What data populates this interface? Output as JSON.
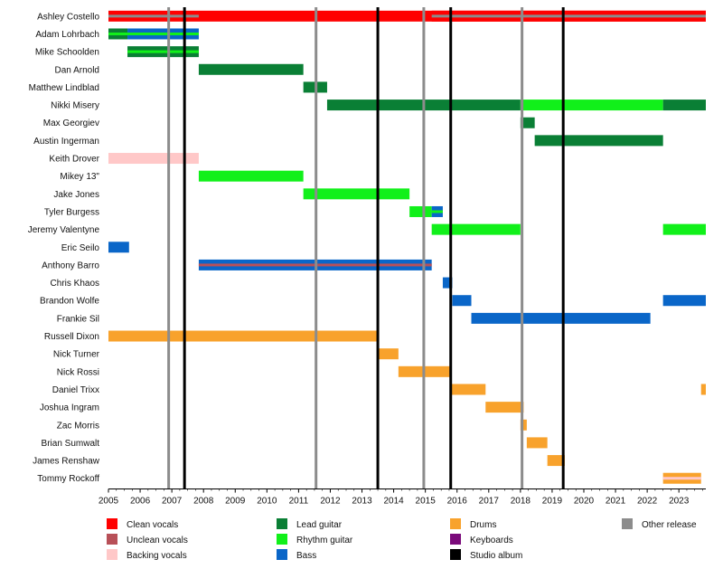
{
  "chart_data": {
    "type": "timeline",
    "xlim": [
      2005,
      2023.85
    ],
    "x_ticks": [
      "2005",
      "2006",
      "2007",
      "2008",
      "2009",
      "2010",
      "2011",
      "2012",
      "2013",
      "2014",
      "2015",
      "2016",
      "2017",
      "2018",
      "2019",
      "2020",
      "2021",
      "2022",
      "2023"
    ],
    "colors": {
      "clean_vocals": "#ff0000",
      "unclean_vocals": "#b85058",
      "backing_vocals": "#ffc8c8",
      "lead_guitar": "#0a7f35",
      "rhythm_guitar": "#11f01a",
      "bass": "#0a66c8",
      "drums": "#f8a22c",
      "keyboards": "#7a0a7a",
      "studio_album": "#000000",
      "other_release": "#8c8c8c"
    },
    "members": [
      {
        "name": "Ashley Costello",
        "periods": [
          {
            "start": 2005,
            "end": 2023.85,
            "role": "clean_vocals",
            "accent": "other_release",
            "accent_range": [
              2005,
              2007.85
            ]
          },
          {
            "start": 2015.2,
            "end": 2023.85,
            "role": "clean_vocals",
            "accent": "other_release"
          }
        ]
      },
      {
        "name": "Adam Lohrbach",
        "periods": [
          {
            "start": 2005,
            "end": 2005.6,
            "role": "lead_guitar",
            "accent": "rhythm_guitar"
          },
          {
            "start": 2005.6,
            "end": 2007.85,
            "role": "bass",
            "accent": "rhythm_guitar"
          }
        ]
      },
      {
        "name": "Mike Schoolden",
        "periods": [
          {
            "start": 2005.6,
            "end": 2007.85,
            "role": "lead_guitar",
            "accent": "rhythm_guitar"
          }
        ]
      },
      {
        "name": "Dan Arnold",
        "periods": [
          {
            "start": 2007.85,
            "end": 2011.15,
            "role": "lead_guitar"
          }
        ]
      },
      {
        "name": "Matthew Lindblad",
        "periods": [
          {
            "start": 2011.15,
            "end": 2011.9,
            "role": "lead_guitar"
          }
        ]
      },
      {
        "name": "Nikki Misery",
        "periods": [
          {
            "start": 2011.9,
            "end": 2018.0,
            "role": "lead_guitar"
          },
          {
            "start": 2018.0,
            "end": 2022.5,
            "role": "rhythm_guitar"
          },
          {
            "start": 2022.5,
            "end": 2023.85,
            "role": "lead_guitar"
          }
        ]
      },
      {
        "name": "Max Georgiev",
        "periods": [
          {
            "start": 2018.0,
            "end": 2018.45,
            "role": "lead_guitar"
          }
        ]
      },
      {
        "name": "Austin Ingerman",
        "periods": [
          {
            "start": 2018.45,
            "end": 2022.5,
            "role": "lead_guitar"
          }
        ]
      },
      {
        "name": "Keith Drover",
        "periods": [
          {
            "start": 2005,
            "end": 2007.85,
            "role": "backing_vocals"
          }
        ]
      },
      {
        "name": "Mikey 13\"",
        "periods": [
          {
            "start": 2007.85,
            "end": 2011.15,
            "role": "rhythm_guitar"
          }
        ]
      },
      {
        "name": "Jake Jones",
        "periods": [
          {
            "start": 2011.15,
            "end": 2014.5,
            "role": "rhythm_guitar"
          }
        ]
      },
      {
        "name": "Tyler Burgess",
        "periods": [
          {
            "start": 2014.5,
            "end": 2015.2,
            "role": "rhythm_guitar"
          },
          {
            "start": 2015.2,
            "end": 2015.55,
            "role": "bass",
            "accent": "rhythm_guitar"
          }
        ]
      },
      {
        "name": "Jeremy Valentyne",
        "periods": [
          {
            "start": 2015.2,
            "end": 2018.0,
            "role": "rhythm_guitar"
          },
          {
            "start": 2022.5,
            "end": 2023.85,
            "role": "rhythm_guitar"
          }
        ]
      },
      {
        "name": "Eric Seilo",
        "periods": [
          {
            "start": 2005,
            "end": 2005.65,
            "role": "bass"
          }
        ]
      },
      {
        "name": "Anthony Barro",
        "periods": [
          {
            "start": 2007.85,
            "end": 2015.2,
            "role": "bass",
            "accent": "unclean_vocals"
          }
        ]
      },
      {
        "name": "Chris Khaos",
        "periods": [
          {
            "start": 2015.55,
            "end": 2015.85,
            "role": "bass"
          }
        ]
      },
      {
        "name": "Brandon Wolfe",
        "periods": [
          {
            "start": 2015.85,
            "end": 2016.45,
            "role": "bass"
          },
          {
            "start": 2022.5,
            "end": 2023.85,
            "role": "bass"
          }
        ]
      },
      {
        "name": "Frankie Sil",
        "periods": [
          {
            "start": 2016.45,
            "end": 2022.1,
            "role": "bass"
          }
        ]
      },
      {
        "name": "Russell Dixon",
        "periods": [
          {
            "start": 2005,
            "end": 2013.5,
            "role": "drums"
          }
        ]
      },
      {
        "name": "Nick Turner",
        "periods": [
          {
            "start": 2013.5,
            "end": 2014.15,
            "role": "drums"
          }
        ]
      },
      {
        "name": "Nick Rossi",
        "periods": [
          {
            "start": 2014.15,
            "end": 2015.8,
            "role": "drums"
          }
        ]
      },
      {
        "name": "Daniel Trixx",
        "periods": [
          {
            "start": 2015.8,
            "end": 2016.9,
            "role": "drums"
          },
          {
            "start": 2023.7,
            "end": 2023.85,
            "role": "drums"
          }
        ]
      },
      {
        "name": "Joshua Ingram",
        "periods": [
          {
            "start": 2016.9,
            "end": 2018.1,
            "role": "drums"
          }
        ]
      },
      {
        "name": "Zac Morris",
        "periods": [
          {
            "start": 2018.0,
            "end": 2018.2,
            "role": "drums"
          }
        ]
      },
      {
        "name": "Brian Sumwalt",
        "periods": [
          {
            "start": 2018.2,
            "end": 2018.85,
            "role": "drums"
          }
        ]
      },
      {
        "name": "James Renshaw",
        "periods": [
          {
            "start": 2018.85,
            "end": 2019.4,
            "role": "drums"
          }
        ]
      },
      {
        "name": "Tommy Rockoff",
        "periods": [
          {
            "start": 2022.5,
            "end": 2023.7,
            "role": "drums",
            "accent": "backing_vocals"
          }
        ]
      }
    ],
    "studio_albums": [
      2007.4,
      2013.5,
      2015.8,
      2019.35
    ],
    "other_releases": [
      2006.9,
      2011.55,
      2014.95,
      2018.05
    ],
    "legend": [
      {
        "label": "Clean vocals",
        "key": "clean_vocals"
      },
      {
        "label": "Unclean vocals",
        "key": "unclean_vocals"
      },
      {
        "label": "Backing vocals",
        "key": "backing_vocals"
      },
      {
        "label": "Lead guitar",
        "key": "lead_guitar"
      },
      {
        "label": "Rhythm guitar",
        "key": "rhythm_guitar"
      },
      {
        "label": "Bass",
        "key": "bass"
      },
      {
        "label": "Drums",
        "key": "drums"
      },
      {
        "label": "Keyboards",
        "key": "keyboards"
      },
      {
        "label": "Studio album",
        "key": "studio_album"
      },
      {
        "label": "Other release",
        "key": "other_release"
      }
    ],
    "legend_placement": "bottom"
  }
}
